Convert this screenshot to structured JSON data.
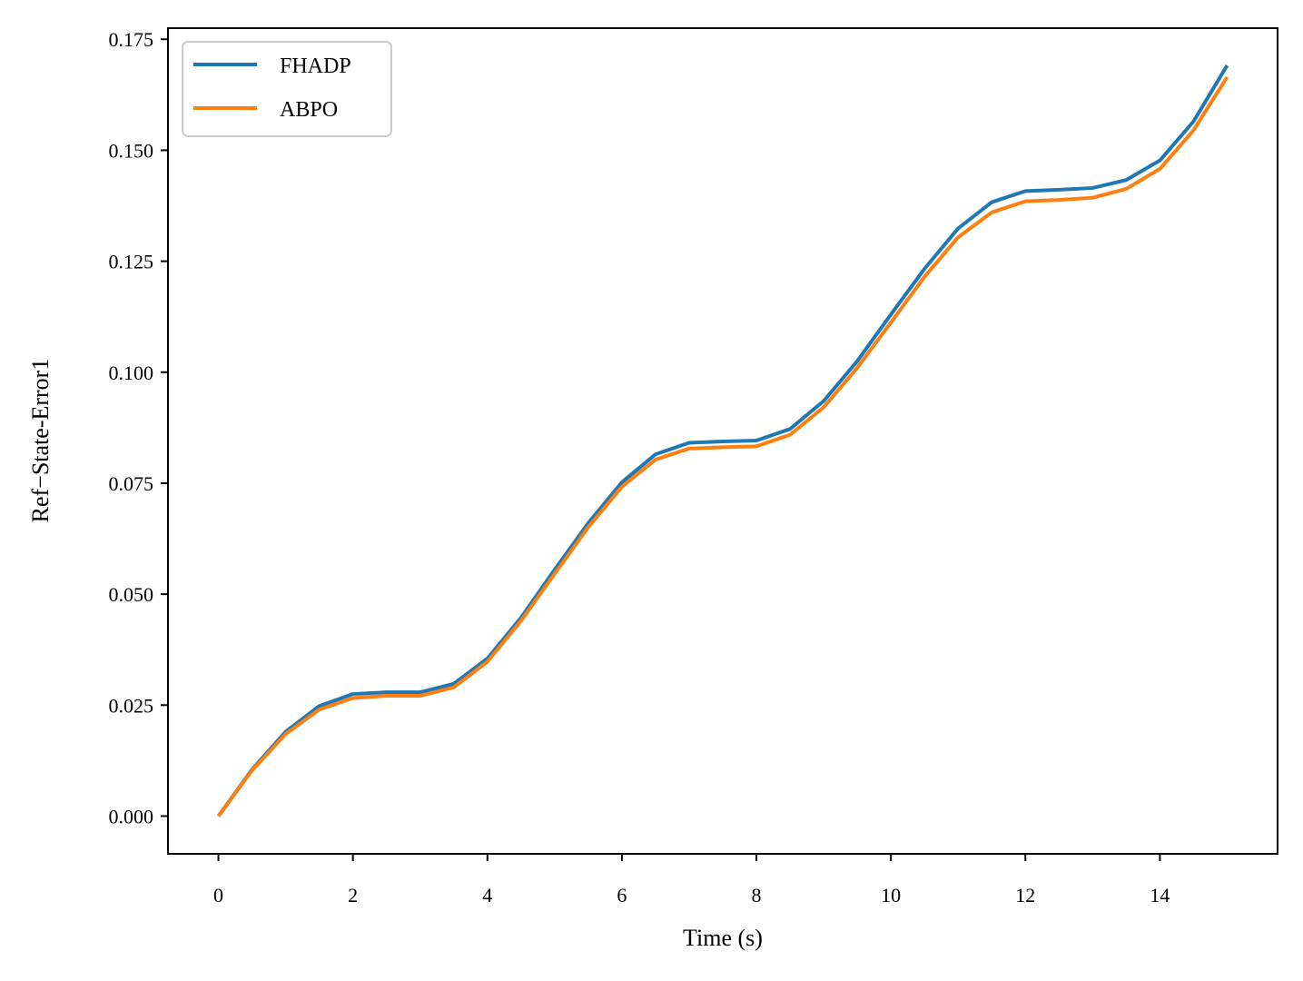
{
  "chart_data": {
    "type": "line",
    "xlabel": "Time (s)",
    "ylabel": "Ref−State-Error1",
    "xlim": [
      -0.75,
      15.75
    ],
    "ylim": [
      -0.0085,
      0.1775
    ],
    "xticks": [
      0,
      2,
      4,
      6,
      8,
      10,
      12,
      14
    ],
    "xtick_labels": [
      "0",
      "2",
      "4",
      "6",
      "8",
      "10",
      "12",
      "14"
    ],
    "yticks": [
      0.0,
      0.025,
      0.05,
      0.075,
      0.1,
      0.125,
      0.15,
      0.175
    ],
    "ytick_labels": [
      "0.000",
      "0.025",
      "0.050",
      "0.075",
      "0.100",
      "0.125",
      "0.150",
      "0.175"
    ],
    "grid": false,
    "legend_position": "top-left",
    "x": [
      0,
      0.5,
      1,
      1.5,
      2,
      2.5,
      3,
      3.5,
      4,
      4.5,
      5,
      5.5,
      6,
      6.5,
      7,
      7.5,
      8,
      8.5,
      9,
      9.5,
      10,
      10.5,
      11,
      11.5,
      12,
      12.5,
      13,
      13.5,
      14,
      14.5,
      15
    ],
    "series": [
      {
        "name": "FHADP",
        "color": "#1f77b4",
        "values": [
          0.0,
          0.0105,
          0.019,
          0.0248,
          0.0275,
          0.0279,
          0.0279,
          0.0298,
          0.0355,
          0.0447,
          0.0555,
          0.066,
          0.0752,
          0.0815,
          0.0841,
          0.0844,
          0.0846,
          0.0872,
          0.0935,
          0.1025,
          0.113,
          0.1233,
          0.1324,
          0.1383,
          0.1408,
          0.1411,
          0.1415,
          0.1433,
          0.1477,
          0.1565,
          0.1691
        ]
      },
      {
        "name": "ABPO",
        "color": "#ff7f0e",
        "values": [
          0.0,
          0.0103,
          0.0185,
          0.024,
          0.0266,
          0.0271,
          0.0271,
          0.029,
          0.0348,
          0.044,
          0.0546,
          0.0651,
          0.0742,
          0.0803,
          0.0828,
          0.0831,
          0.0833,
          0.0859,
          0.0921,
          0.101,
          0.1112,
          0.1215,
          0.1304,
          0.136,
          0.1385,
          0.1388,
          0.1393,
          0.1413,
          0.1458,
          0.1545,
          0.1665
        ]
      }
    ]
  }
}
